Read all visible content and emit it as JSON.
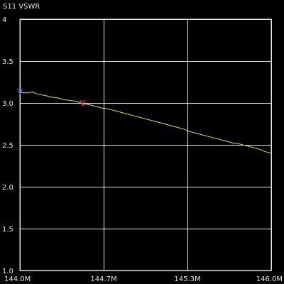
{
  "colors": {
    "background": "#000000",
    "grid": "#e6e6e6",
    "text": "#e6e6e6",
    "trace": "#d8d860",
    "marker1": "#3c5cff",
    "marker2": "#ff3030"
  },
  "chart_data": {
    "type": "line",
    "title": "S11 VSWR",
    "xlabel": "",
    "ylabel": "",
    "xlim": [
      144.0,
      146.0
    ],
    "ylim": [
      1.0,
      4.0
    ],
    "grid": true,
    "x_ticks": [
      {
        "value": 144.0,
        "label": "144.0M"
      },
      {
        "value": 144.6667,
        "label": "144.7M"
      },
      {
        "value": 145.3333,
        "label": "145.3M"
      },
      {
        "value": 146.0,
        "label": "146.0M"
      }
    ],
    "y_ticks": [
      {
        "value": 1.0,
        "label": "1.0"
      },
      {
        "value": 1.5,
        "label": "1.5"
      },
      {
        "value": 2.0,
        "label": "2.0"
      },
      {
        "value": 2.5,
        "label": "2.5"
      },
      {
        "value": 3.0,
        "label": "3.0"
      },
      {
        "value": 3.5,
        "label": "3.5"
      },
      {
        "value": 4.0,
        "label": "4"
      }
    ],
    "series": [
      {
        "x": [
          144.0,
          144.05,
          144.1,
          144.15,
          144.2,
          144.25,
          144.3,
          144.35,
          144.4,
          144.45,
          144.5,
          144.55,
          144.6,
          144.65,
          144.7,
          144.75,
          144.8,
          144.85,
          144.9,
          144.95,
          145.0,
          145.05,
          145.1,
          145.15,
          145.2,
          145.25,
          145.3,
          145.35,
          145.4,
          145.45,
          145.5,
          145.55,
          145.6,
          145.65,
          145.7,
          145.75,
          145.8,
          145.85,
          145.9,
          145.95,
          146.0
        ],
        "values": [
          3.13,
          3.12,
          3.13,
          3.1,
          3.09,
          3.07,
          3.06,
          3.04,
          3.03,
          3.02,
          2.99,
          2.98,
          2.96,
          2.94,
          2.93,
          2.91,
          2.89,
          2.87,
          2.85,
          2.83,
          2.81,
          2.79,
          2.77,
          2.75,
          2.73,
          2.71,
          2.69,
          2.66,
          2.64,
          2.62,
          2.6,
          2.58,
          2.56,
          2.54,
          2.52,
          2.51,
          2.49,
          2.47,
          2.45,
          2.42,
          2.4
        ]
      }
    ],
    "markers": [
      {
        "id": "marker-1",
        "x": 144.0,
        "y": 3.13,
        "color": "#3c5cff"
      },
      {
        "id": "marker-2",
        "x": 144.5,
        "y": 2.99,
        "color": "#ff3030"
      }
    ]
  }
}
